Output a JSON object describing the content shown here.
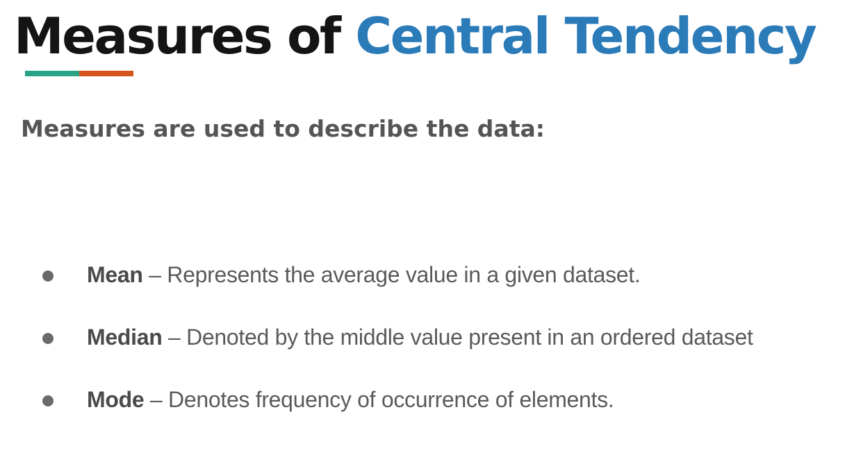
{
  "title": {
    "part1": "Measures of ",
    "part2": "Central Tendency"
  },
  "colors": {
    "title_dark": "#141414",
    "title_accent": "#2b7bb9",
    "underline_left": "#2aa388",
    "underline_right": "#d4541c",
    "subtitle": "#555555",
    "body_text": "#5a5a5a"
  },
  "subtitle": "Measures are used to describe the data:",
  "bullets": [
    {
      "term": "Mean",
      "separator": " – ",
      "description": "Represents the average value in a given dataset."
    },
    {
      "term": "Median",
      "separator": " – ",
      "description": "Denoted by the middle value present in an ordered dataset"
    },
    {
      "term": "Mode",
      "separator": " – ",
      "description": "Denotes frequency of occurrence of elements."
    }
  ]
}
